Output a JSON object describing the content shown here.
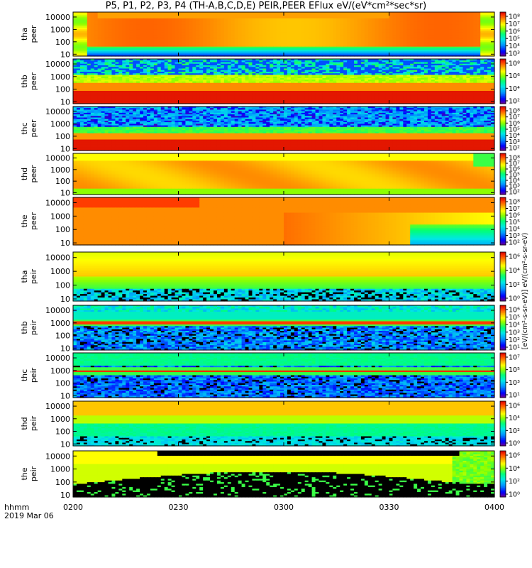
{
  "title": "P5, P1, P2, P3, P4 (TH-A,B,C,D,E) PEIR,PEER EFlux eV/(eV*cm²*sec*sr)",
  "time_axis": {
    "prefix": "hhmm",
    "date": "2019 Mar 06",
    "ticks": [
      "0200",
      "0230",
      "0300",
      "0330",
      "0400"
    ],
    "start_min": 0,
    "end_min": 120,
    "tick_min": [
      0,
      30,
      60,
      90,
      120
    ]
  },
  "colorbar_label": "[eV/(cm²-s-sr-eV)] eV/(cm²-s-sr-eV)",
  "chart_data": {
    "type": "heatmap",
    "x_units": "hhmm (UT)",
    "y_units": "energy (eV), log scale",
    "ylim": [
      7,
      25000
    ],
    "y_ticks": [
      10,
      100,
      1000,
      10000
    ],
    "colormap": [
      "#8b008b",
      "#0000ff",
      "#00a0ff",
      "#00e0ff",
      "#00ff80",
      "#80ff00",
      "#ffff00",
      "#ffa000",
      "#ff4000",
      "#d00000"
    ],
    "panels": [
      {
        "id": "tha_peer",
        "label_top": "tha",
        "label_bot": "peer",
        "cb_ticks": [
          "10³",
          "10⁴",
          "10⁵",
          "10⁶",
          "10⁷",
          "10⁸"
        ],
        "profile": "peer_a"
      },
      {
        "id": "thb_peer",
        "label_top": "thb",
        "label_bot": "peer",
        "cb_ticks": [
          "10²",
          "10⁴",
          "10⁶",
          "10⁸"
        ],
        "profile": "peer_b"
      },
      {
        "id": "thc_peer",
        "label_top": "thc",
        "label_bot": "peer",
        "cb_ticks": [
          "10²",
          "10³",
          "10⁴",
          "10⁵",
          "10⁶",
          "10⁷",
          "10⁸"
        ],
        "profile": "peer_c"
      },
      {
        "id": "thd_peer",
        "label_top": "thd",
        "label_bot": "peer",
        "cb_ticks": [
          "10²",
          "10³",
          "10⁴",
          "10⁵",
          "10⁶",
          "10⁷",
          "10⁸"
        ],
        "profile": "peer_d"
      },
      {
        "id": "the_peer",
        "label_top": "the",
        "label_bot": "peer",
        "cb_ticks": [
          "10²",
          "10³",
          "10⁴",
          "10⁵",
          "10⁶",
          "10⁷",
          "10⁸"
        ],
        "profile": "peer_e"
      },
      {
        "id": "tha_peir",
        "label_top": "tha",
        "label_bot": "peir",
        "cb_ticks": [
          "10⁰",
          "10²",
          "10⁴",
          "10⁶"
        ],
        "profile": "peir_a"
      },
      {
        "id": "thb_peir",
        "label_top": "thb",
        "label_bot": "peir",
        "cb_ticks": [
          "10¹",
          "10²",
          "10³",
          "10⁴",
          "10⁵",
          "10⁶"
        ],
        "profile": "peir_b"
      },
      {
        "id": "thc_peir",
        "label_top": "thc",
        "label_bot": "peir",
        "cb_ticks": [
          "10¹",
          "10³",
          "10⁵",
          "10⁷"
        ],
        "profile": "peir_c"
      },
      {
        "id": "thd_peir",
        "label_top": "thd",
        "label_bot": "peir",
        "cb_ticks": [
          "10⁰",
          "10²",
          "10⁴",
          "10⁶"
        ],
        "profile": "peir_d"
      },
      {
        "id": "the_peir",
        "label_top": "the",
        "label_bot": "peir",
        "cb_ticks": [
          "10⁰",
          "10²",
          "10⁴",
          "10⁶"
        ],
        "profile": "peir_e"
      }
    ]
  }
}
